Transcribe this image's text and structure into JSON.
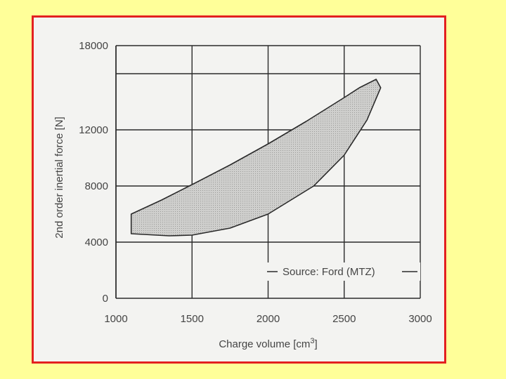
{
  "chart_data": {
    "type": "area",
    "xlabel": "Charge volume [cm",
    "xlabel_sup": "3",
    "xlabel_end": "]",
    "ylabel": "2nd order inertial force [N]",
    "xlim": [
      1000,
      3000
    ],
    "ylim": [
      0,
      18000
    ],
    "x_ticks": [
      1000,
      1500,
      2000,
      2500,
      3000
    ],
    "y_ticks": [
      0,
      4000,
      8000,
      12000,
      16000,
      18000
    ],
    "y_tick_labels": [
      "0",
      "4000",
      "8000",
      "12000",
      "",
      "18000"
    ],
    "x_grid": [
      1000,
      1500,
      2000,
      2500,
      3000
    ],
    "y_grid": [
      4000,
      8000,
      12000,
      16000,
      18000
    ],
    "grid": true,
    "annotation": "Source: Ford (MTZ)",
    "series": [
      {
        "upper_boundary": [
          {
            "x": 1100,
            "y": 6000
          },
          {
            "x": 1300,
            "y": 7000
          },
          {
            "x": 1500,
            "y": 8100
          },
          {
            "x": 1750,
            "y": 9500
          },
          {
            "x": 2000,
            "y": 11000
          },
          {
            "x": 2250,
            "y": 12600
          },
          {
            "x": 2500,
            "y": 14300
          },
          {
            "x": 2600,
            "y": 15000
          },
          {
            "x": 2710,
            "y": 15600
          }
        ],
        "tip": [
          {
            "x": 2710,
            "y": 15600
          },
          {
            "x": 2740,
            "y": 15000
          }
        ],
        "lower_boundary": [
          {
            "x": 2740,
            "y": 15000
          },
          {
            "x": 2650,
            "y": 12700
          },
          {
            "x": 2500,
            "y": 10200
          },
          {
            "x": 2300,
            "y": 8000
          },
          {
            "x": 2000,
            "y": 6000
          },
          {
            "x": 1750,
            "y": 5000
          },
          {
            "x": 1500,
            "y": 4500
          },
          {
            "x": 1350,
            "y": 4450
          },
          {
            "x": 1100,
            "y": 4600
          }
        ]
      }
    ]
  },
  "colors": {
    "frame_border": "#e32020",
    "page_background": "#ffff99",
    "plot_background": "#f3f3f1",
    "grid": "#2a2a2a",
    "region_fill": "#c8c8c6",
    "region_stroke": "#2a2a2a",
    "text": "#444444"
  }
}
